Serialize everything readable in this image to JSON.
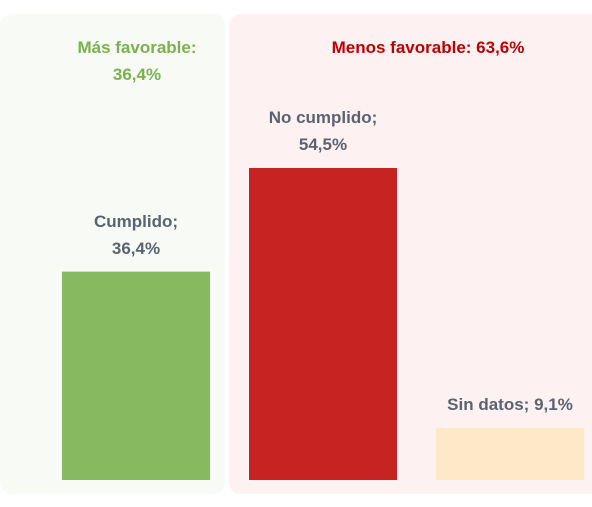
{
  "chart_data": {
    "type": "bar",
    "categories": [
      "Cumplido",
      "No cumplido",
      "Sin datos"
    ],
    "values": [
      36.4,
      54.5,
      9.1
    ],
    "value_labels": [
      "Cumplido; 36,4%",
      "No cumplido; 54,5%",
      "Sin datos; 9,1%"
    ],
    "colors": [
      "#87b961",
      "#c82323",
      "#fde9c8"
    ],
    "annotations": [
      {
        "text": "Más favorable: 36,4%",
        "color": "#7ab24d"
      },
      {
        "text": "Menos favorable: 63,6%",
        "color": "#c00000"
      }
    ]
  }
}
